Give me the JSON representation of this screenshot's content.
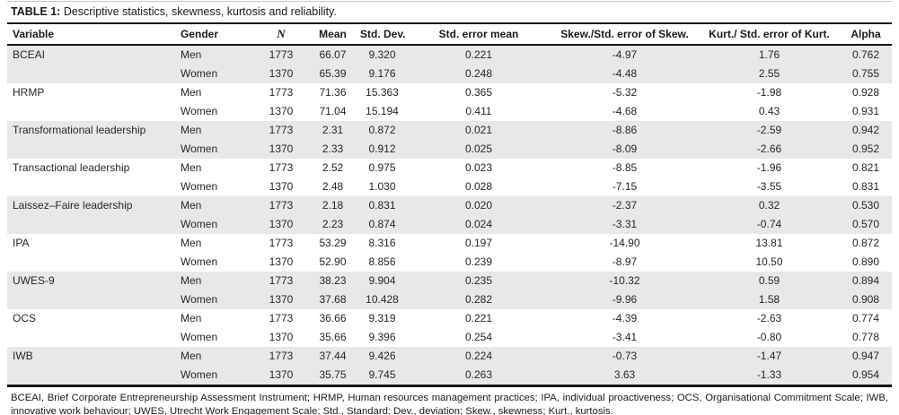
{
  "table": {
    "title_label": "TABLE 1:",
    "title_text": "Descriptive statistics, skewness, kurtosis and reliability.",
    "columns": [
      "Variable",
      "Gender",
      "N",
      "Mean",
      "Std. Dev.",
      "Std. error mean",
      "Skew./Std. error of Skew.",
      "Kurt./ Std. error of Kurt.",
      "Alpha"
    ],
    "column_keys": [
      "variable",
      "gender",
      "n",
      "mean",
      "std-dev",
      "std-error-mean",
      "skew-ratio",
      "kurt-ratio",
      "alpha"
    ],
    "rows": [
      {
        "shaded": true,
        "cells": [
          "BCEAI",
          "Men",
          "1773",
          "66.07",
          "9.320",
          "0.221",
          "-4.97",
          "1.76",
          "0.762"
        ]
      },
      {
        "shaded": true,
        "cells": [
          "",
          "Women",
          "1370",
          "65.39",
          "9.176",
          "0.248",
          "-4.48",
          "2.55",
          "0.755"
        ]
      },
      {
        "shaded": false,
        "cells": [
          "HRMP",
          "Men",
          "1773",
          "71.36",
          "15.363",
          "0.365",
          "-5.32",
          "-1.98",
          "0.928"
        ]
      },
      {
        "shaded": false,
        "cells": [
          "",
          "Women",
          "1370",
          "71.04",
          "15.194",
          "0.411",
          "-4.68",
          "0.43",
          "0.931"
        ]
      },
      {
        "shaded": true,
        "cells": [
          "Transformational leadership",
          "Men",
          "1773",
          "2.31",
          "0.872",
          "0.021",
          "-8.86",
          "-2.59",
          "0.942"
        ]
      },
      {
        "shaded": true,
        "cells": [
          "",
          "Women",
          "1370",
          "2.33",
          "0.912",
          "0.025",
          "-8.09",
          "-2.66",
          "0.952"
        ]
      },
      {
        "shaded": false,
        "cells": [
          "Transactional leadership",
          "Men",
          "1773",
          "2.52",
          "0.975",
          "0.023",
          "-8.85",
          "-1.96",
          "0.821"
        ]
      },
      {
        "shaded": false,
        "cells": [
          "",
          "Women",
          "1370",
          "2.48",
          "1.030",
          "0.028",
          "-7.15",
          "-3.55",
          "0.831"
        ]
      },
      {
        "shaded": true,
        "cells": [
          "Laissez–Faire leadership",
          "Men",
          "1773",
          "2.18",
          "0.831",
          "0.020",
          "-2.37",
          "0.32",
          "0.530"
        ]
      },
      {
        "shaded": true,
        "cells": [
          "",
          "Women",
          "1370",
          "2.23",
          "0.874",
          "0.024",
          "-3.31",
          "-0.74",
          "0.570"
        ]
      },
      {
        "shaded": false,
        "cells": [
          "IPA",
          "Men",
          "1773",
          "53.29",
          "8.316",
          "0.197",
          "-14.90",
          "13.81",
          "0.872"
        ]
      },
      {
        "shaded": false,
        "cells": [
          "",
          "Women",
          "1370",
          "52.90",
          "8.856",
          "0.239",
          "-8.97",
          "10.50",
          "0.890"
        ]
      },
      {
        "shaded": true,
        "cells": [
          "UWES-9",
          "Men",
          "1773",
          "38.23",
          "9.904",
          "0.235",
          "-10.32",
          "0.59",
          "0.894"
        ]
      },
      {
        "shaded": true,
        "cells": [
          "",
          "Women",
          "1370",
          "37.68",
          "10.428",
          "0.282",
          "-9.96",
          "1.58",
          "0.908"
        ]
      },
      {
        "shaded": false,
        "cells": [
          "OCS",
          "Men",
          "1773",
          "36.66",
          "9.319",
          "0.221",
          "-4.39",
          "-2.63",
          "0.774"
        ]
      },
      {
        "shaded": false,
        "cells": [
          "",
          "Women",
          "1370",
          "35.66",
          "9.396",
          "0.254",
          "-3.41",
          "-0.80",
          "0.778"
        ]
      },
      {
        "shaded": true,
        "cells": [
          "IWB",
          "Men",
          "1773",
          "37.44",
          "9.426",
          "0.224",
          "-0.73",
          "-1.47",
          "0.947"
        ]
      },
      {
        "shaded": true,
        "cells": [
          "",
          "Women",
          "1370",
          "35.75",
          "9.745",
          "0.263",
          "3.63",
          "-1.33",
          "0.954"
        ]
      }
    ],
    "footnote": "BCEAI, Brief Corporate Entrepreneurship Assessment Instrument; HRMP, Human resources management practices; IPA, individual proactiveness; OCS, Organisational Commitment Scale; IWB, innovative work behaviour; UWES, Utrecht Work Engagement Scale; Std., Standard; Dev., deviation; Skew., skewness; Kurt., kurtosis."
  }
}
